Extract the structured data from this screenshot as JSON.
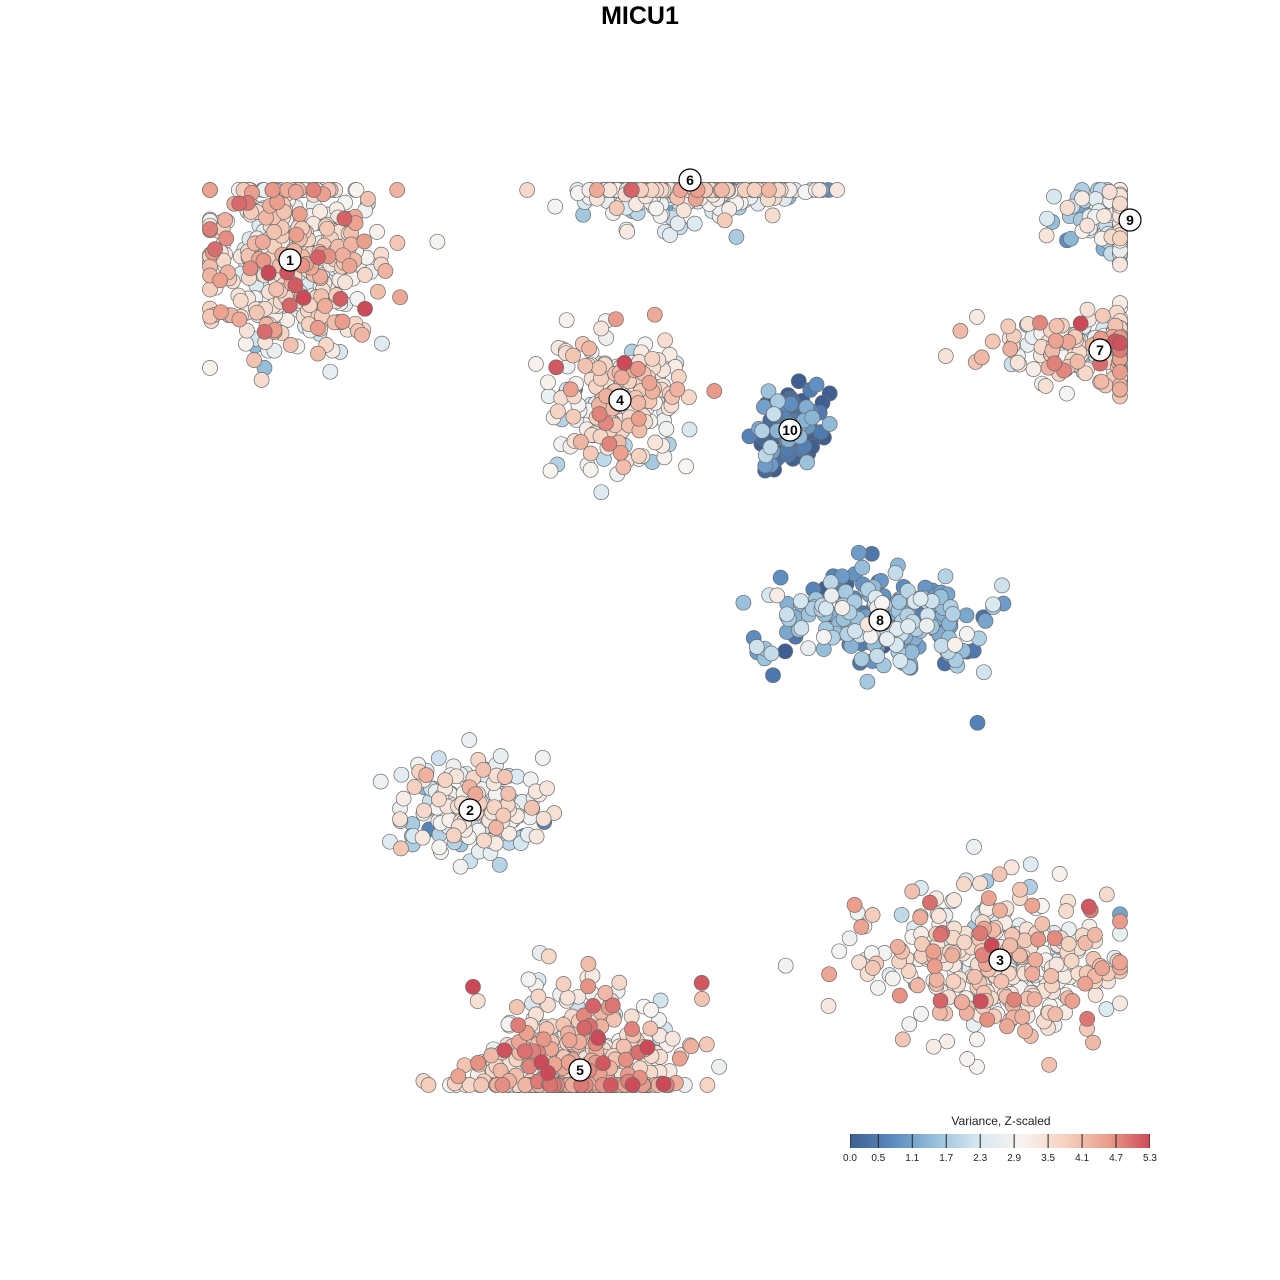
{
  "title": "MICU1",
  "chart_data": {
    "type": "scatter",
    "title": "MICU1",
    "xlabel": "",
    "ylabel": "",
    "grid": false,
    "color_scale": {
      "title": "Variance, Z-scaled",
      "min": 0.0,
      "max": 5.3,
      "ticks": [
        "0.0",
        "0.5",
        "1.1",
        "1.7",
        "2.3",
        "2.9",
        "3.5",
        "4.1",
        "4.7",
        "5.3"
      ],
      "tick_values": [
        0.0,
        0.5,
        1.1,
        1.7,
        2.3,
        2.9,
        3.5,
        4.1,
        4.7,
        5.3
      ],
      "colors": [
        "#3f5f92",
        "#5a8bbf",
        "#97c0db",
        "#d7e8f1",
        "#f7f4f1",
        "#f6d2c0",
        "#eb9f8d",
        "#cc4a58"
      ],
      "legend_position": "bottom-right"
    },
    "clusters": [
      {
        "label": "1",
        "x": -18.5,
        "y": 19.0,
        "mean_value": 3.4
      },
      {
        "label": "2",
        "x": -9.5,
        "y": -8.5,
        "mean_value": 2.6
      },
      {
        "label": "3",
        "x": 17.0,
        "y": -16.0,
        "mean_value": 3.3
      },
      {
        "label": "4",
        "x": -2.0,
        "y": 12.0,
        "mean_value": 3.2
      },
      {
        "label": "5",
        "x": -4.0,
        "y": -21.5,
        "mean_value": 3.6
      },
      {
        "label": "6",
        "x": 1.5,
        "y": 23.0,
        "mean_value": 2.6
      },
      {
        "label": "7",
        "x": 22.0,
        "y": 14.5,
        "mean_value": 3.3
      },
      {
        "label": "8",
        "x": 11.0,
        "y": 1.0,
        "mean_value": 1.3
      },
      {
        "label": "9",
        "x": 23.5,
        "y": 21.0,
        "mean_value": 2.3
      },
      {
        "label": "10",
        "x": 6.5,
        "y": 10.5,
        "mean_value": 0.4
      }
    ]
  }
}
